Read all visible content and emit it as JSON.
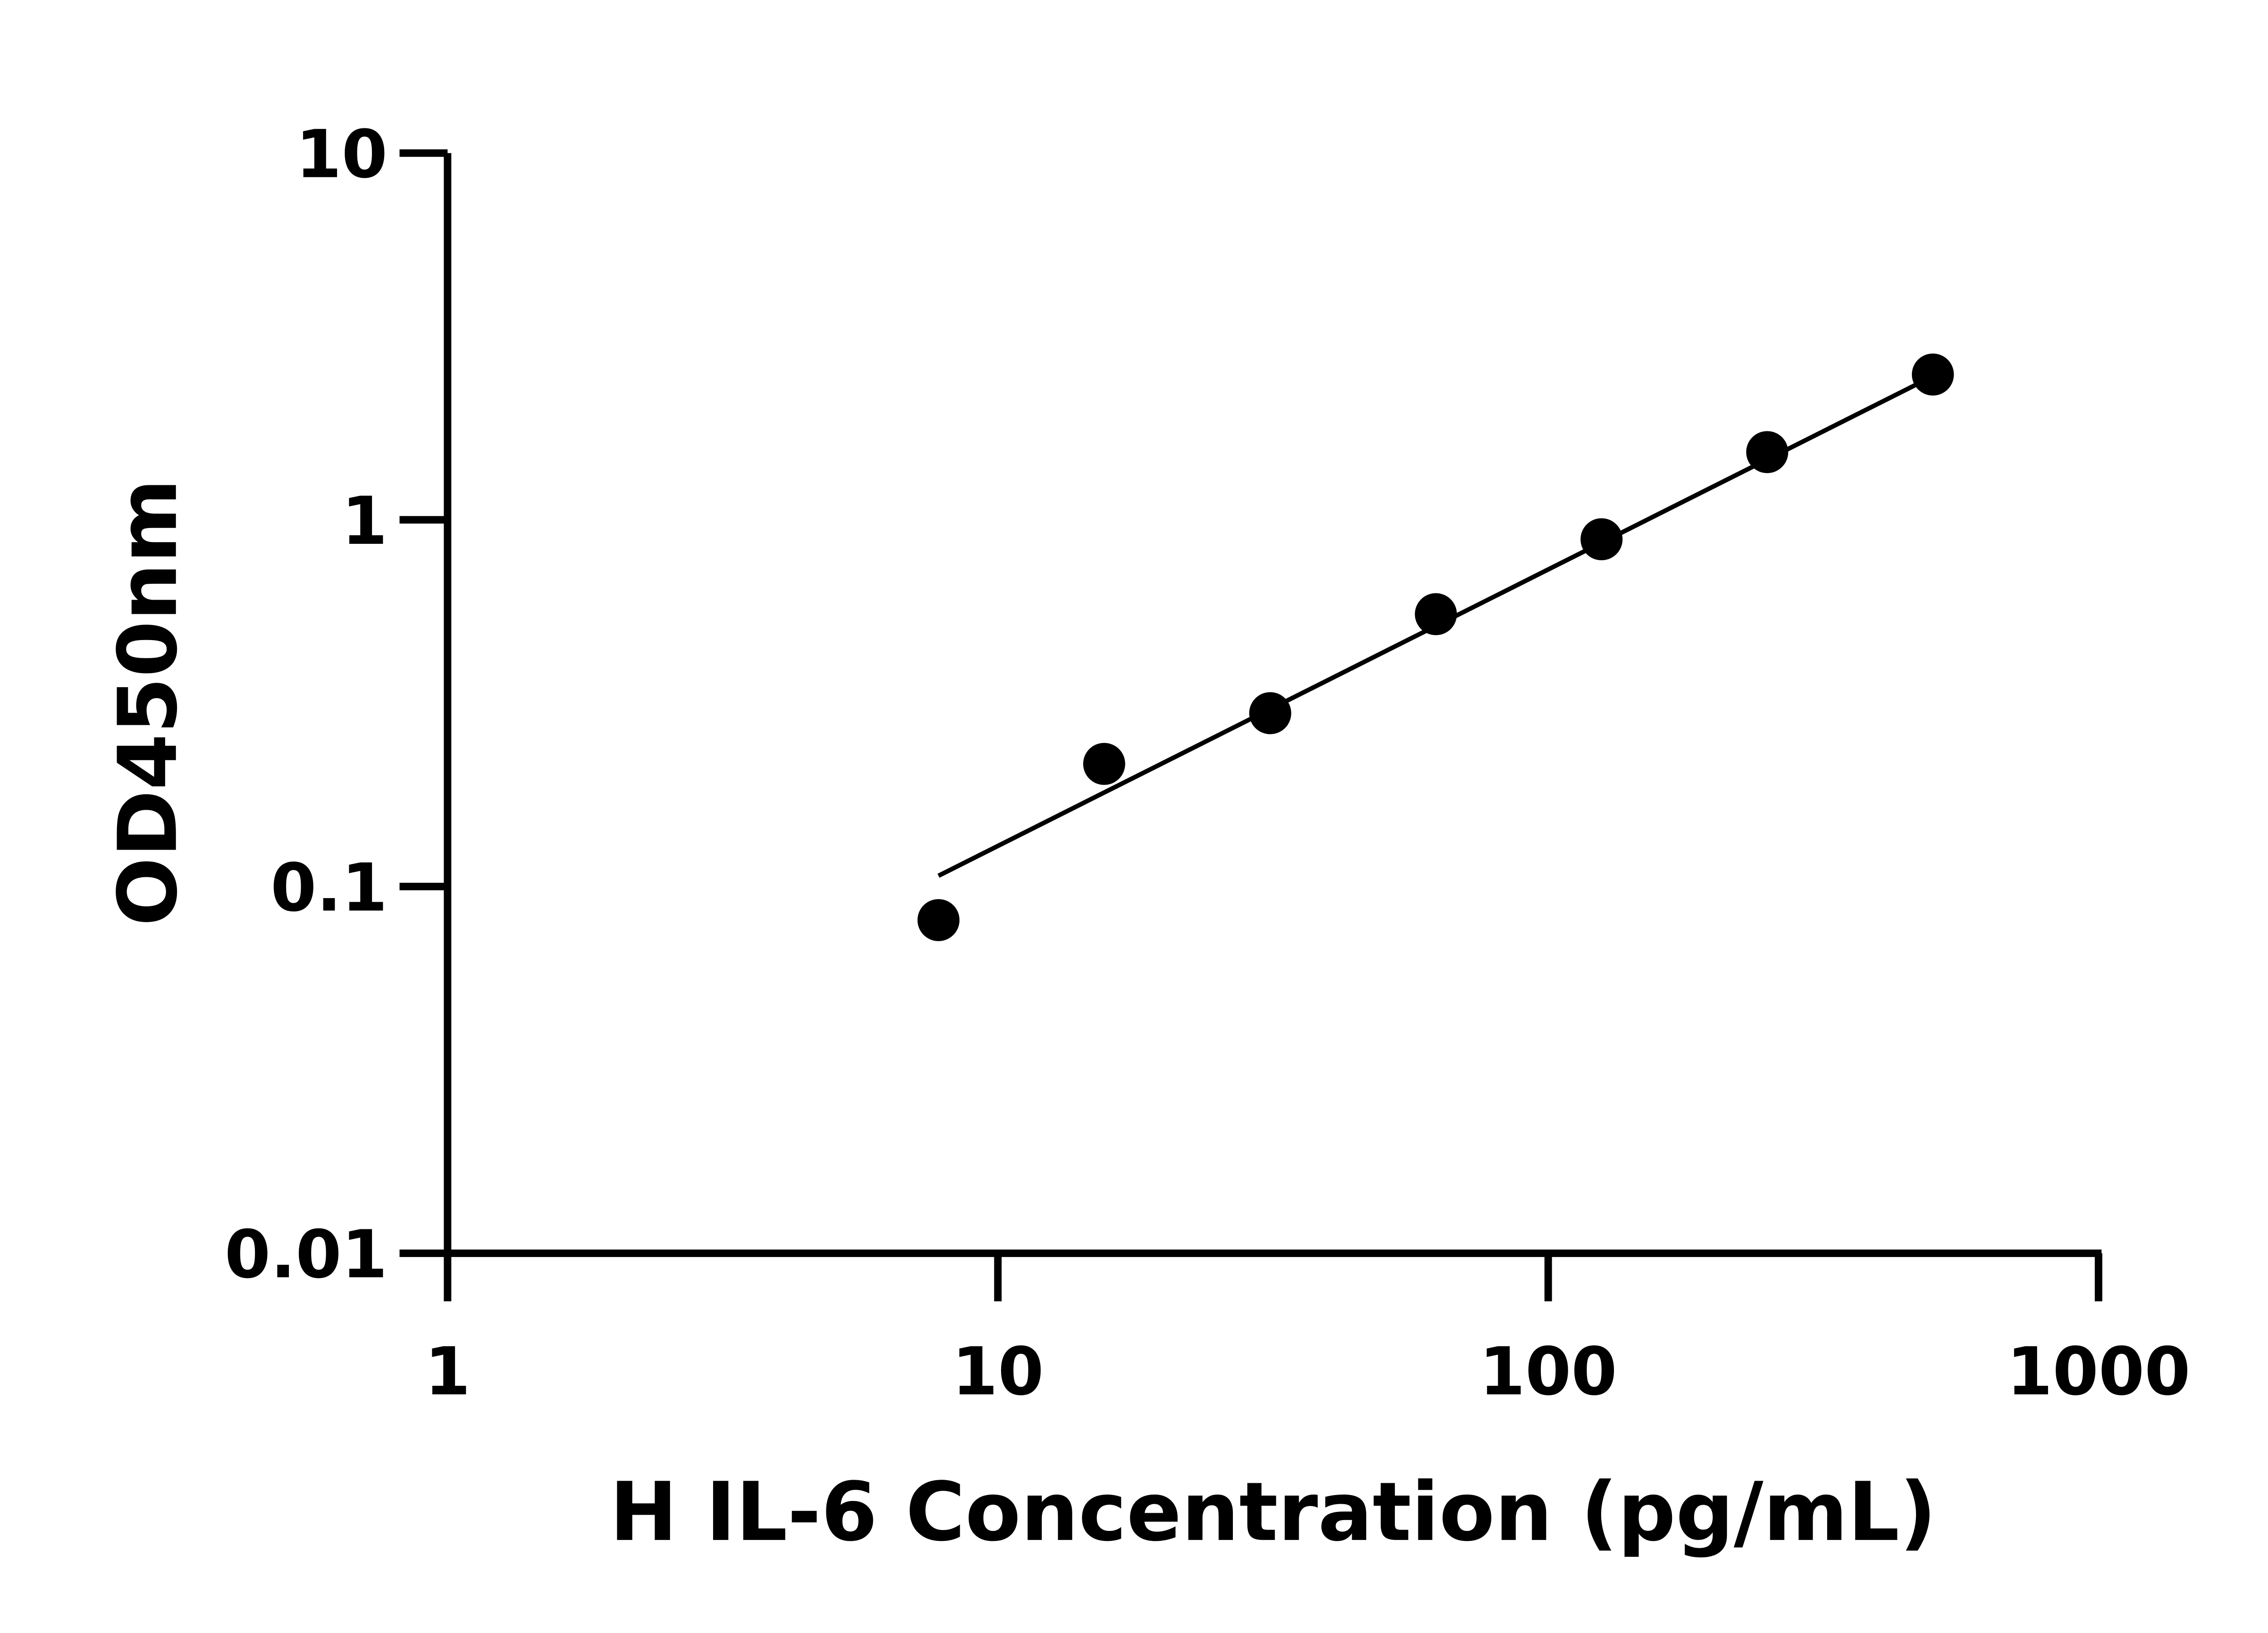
{
  "chart_data": {
    "type": "scatter",
    "title": "",
    "xlabel": "H IL-6 Concentration (pg/mL)",
    "ylabel": "OD450nm",
    "x_scale": "log",
    "y_scale": "log",
    "xlim": [
      1,
      1000
    ],
    "ylim": [
      0.01,
      10
    ],
    "x_ticks": [
      1,
      10,
      100,
      1000
    ],
    "x_tick_labels": [
      "1",
      "10",
      "100",
      "1000"
    ],
    "y_ticks": [
      0.01,
      0.1,
      1,
      10
    ],
    "y_tick_labels": [
      "0.01",
      "0.1",
      "1",
      "10"
    ],
    "grid": false,
    "colors": {
      "points": "#000000",
      "line": "#000000",
      "axes": "#000000"
    },
    "points": {
      "x": [
        7.8,
        15.6,
        31.25,
        62.5,
        125,
        250,
        500
      ],
      "y": [
        0.081,
        0.216,
        0.297,
        0.553,
        0.885,
        1.53,
        2.49
      ]
    },
    "fit_line": {
      "x": [
        7.8,
        475
      ],
      "y": [
        0.107,
        2.37
      ]
    }
  }
}
